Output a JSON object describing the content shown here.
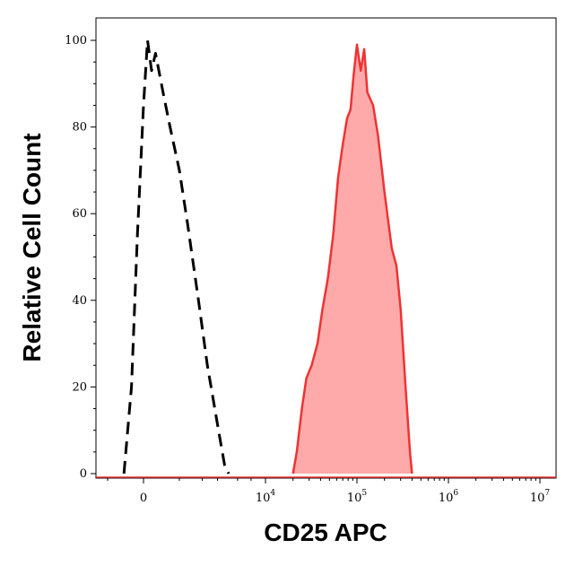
{
  "chart_data": {
    "type": "area",
    "xlabel": "CD25 APC",
    "ylabel": "Relative Cell Count",
    "x_scale": "biexponential",
    "ylim": [
      0,
      100
    ],
    "y_ticks": [
      "0",
      "20",
      "40",
      "60",
      "80",
      "100"
    ],
    "x_ticks": [
      {
        "base": "0",
        "exp": ""
      },
      {
        "base": "10",
        "exp": "4"
      },
      {
        "base": "10",
        "exp": "5"
      },
      {
        "base": "10",
        "exp": "6"
      },
      {
        "base": "10",
        "exp": "7"
      }
    ],
    "grid": false,
    "legend": "none",
    "series": [
      {
        "style": "dashed-outline",
        "color": "#000000",
        "x": [
          -500,
          -300,
          -150,
          0,
          100,
          200,
          300,
          500,
          700,
          1000,
          1300,
          1800,
          2300,
          2800,
          3200,
          3600,
          4000
        ],
        "y": [
          0,
          20,
          55,
          85,
          100,
          93,
          97,
          88,
          80,
          70,
          58,
          40,
          25,
          15,
          8,
          2,
          0
        ]
      },
      {
        "style": "filled",
        "color": "#ee3333",
        "fill": "#ffaaaa",
        "x": [
          20000,
          22000,
          25000,
          28000,
          32000,
          37000,
          42000,
          48000,
          55000,
          62000,
          70000,
          78000,
          85000,
          92000,
          100000,
          110000,
          120000,
          130000,
          150000,
          170000,
          200000,
          240000,
          270000,
          300000,
          340000,
          380000,
          400000
        ],
        "y": [
          0,
          5,
          15,
          22,
          25,
          30,
          38,
          45,
          55,
          68,
          76,
          82,
          84,
          92,
          99,
          93,
          98,
          88,
          85,
          78,
          65,
          52,
          48,
          38,
          20,
          5,
          0
        ]
      }
    ]
  }
}
